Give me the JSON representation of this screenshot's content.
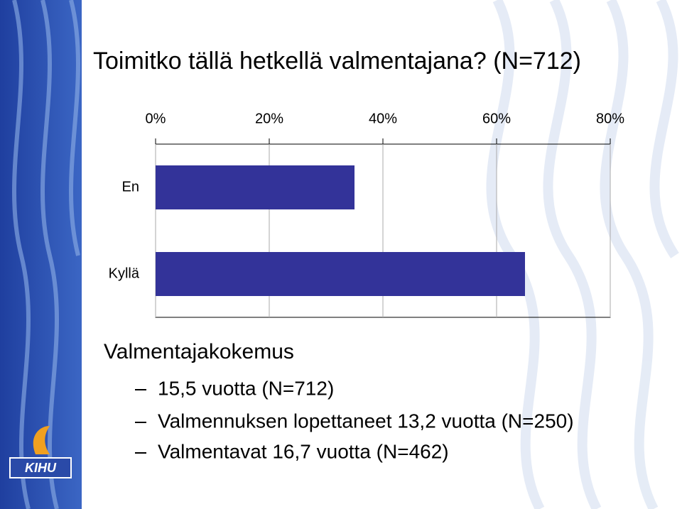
{
  "chart_data": {
    "type": "bar",
    "orientation": "horizontal",
    "title": "Toimitko tällä hetkellä valmentajana? (N=712)",
    "categories": [
      "En",
      "Kyllä"
    ],
    "values": [
      35,
      65
    ],
    "color": "#333399",
    "xlim": [
      0,
      80
    ],
    "xticks": [
      {
        "value": 0,
        "label": "0%"
      },
      {
        "value": 20,
        "label": "20%"
      },
      {
        "value": 40,
        "label": "40%"
      },
      {
        "value": 60,
        "label": "60%"
      },
      {
        "value": 80,
        "label": "80%"
      }
    ],
    "grid": true
  },
  "slide": {
    "heading": "Valmentajakokemus",
    "items": [
      "15,5 vuotta (N=712)",
      "Valmennuksen lopettaneet 13,2 vuotta (N=250)",
      "Valmentavat 16,7 vuotta (N=462)"
    ],
    "logo": "KIHU"
  }
}
